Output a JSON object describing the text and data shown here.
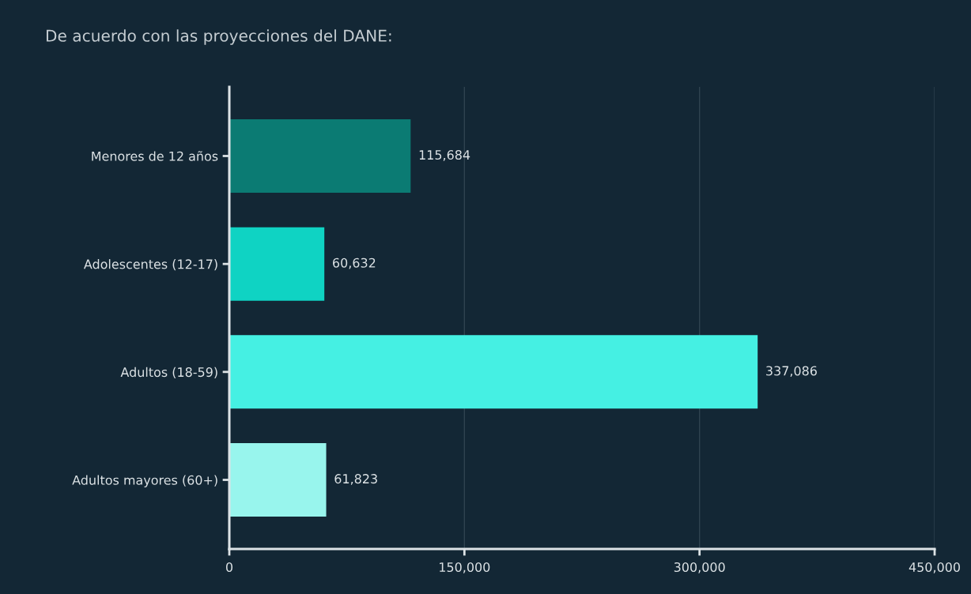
{
  "chart_data": {
    "type": "bar",
    "orientation": "horizontal",
    "title": "De acuerdo con las proyecciones del DANE:",
    "categories": [
      "Menores de 12 años",
      "Adolescentes (12-17)",
      "Adultos (18-59)",
      "Adultos mayores (60+)"
    ],
    "values": [
      115684,
      60632,
      337086,
      61823
    ],
    "colors": [
      "#0b7b73",
      "#0fd3c3",
      "#45f0e3",
      "#98f5ed"
    ],
    "value_labels": [
      "115,684",
      "60,632",
      "337,086",
      "61,823"
    ],
    "xlim": [
      0,
      450000
    ],
    "xticks": [
      {
        "value": 0,
        "label": "0"
      },
      {
        "value": 150000,
        "label": "150,000"
      },
      {
        "value": 300000,
        "label": "300,000"
      },
      {
        "value": 450000,
        "label": "450,000"
      }
    ],
    "grid": "x"
  }
}
